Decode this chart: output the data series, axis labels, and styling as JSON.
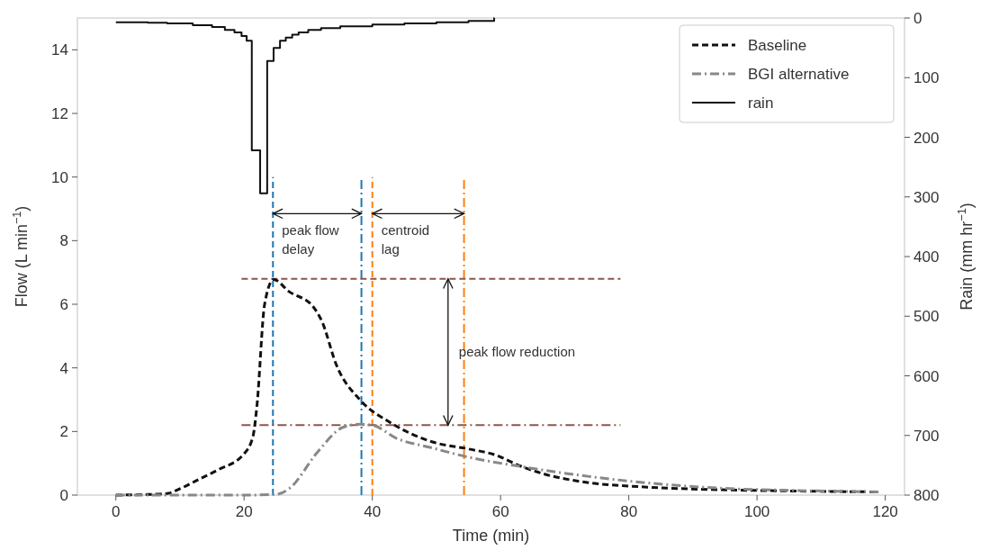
{
  "chart_data": {
    "type": "line",
    "xlabel": "Time (min)",
    "ylabel": "Flow (L min$^{−1}$)",
    "y2label": "Rain (mm hr$^{−1}$)",
    "xlim": [
      -6,
      123
    ],
    "xticks": [
      0,
      20,
      40,
      60,
      80,
      100,
      120
    ],
    "ylim": [
      0,
      15
    ],
    "yticks": [
      0,
      2,
      4,
      6,
      8,
      10,
      12,
      14
    ],
    "y2lim": [
      800,
      0
    ],
    "y2ticks": [
      0,
      100,
      200,
      300,
      400,
      500,
      600,
      700,
      800
    ],
    "legend": "top right",
    "grid": false,
    "series": [
      {
        "name": "Baseline",
        "color": "#111111",
        "line_style": "dashed",
        "x": [
          0,
          5,
          8,
          10,
          13,
          16,
          20,
          21.4,
          22,
          23.2,
          24.6,
          27,
          30.7,
          32.1,
          34.4,
          38.2,
          42.8,
          49.4,
          55,
          58.9,
          63.4,
          67,
          71.7,
          82.9,
          94.1,
          105,
          119
        ],
        "values": [
          0,
          0.02,
          0.05,
          0.2,
          0.5,
          0.8,
          1.3,
          1.86,
          2.8,
          6.0,
          6.78,
          6.4,
          5.94,
          5.48,
          4.09,
          2.97,
          2.28,
          1.67,
          1.45,
          1.28,
          0.89,
          0.65,
          0.45,
          0.25,
          0.17,
          0.13,
          0.1
        ]
      },
      {
        "name": "BGI alternative",
        "color": "#888888",
        "line_style": "dashdot",
        "x": [
          0,
          10,
          20,
          25,
          27,
          31.6,
          35.4,
          38,
          40,
          43.8,
          49,
          54.4,
          63.4,
          77.3,
          94,
          105,
          119
        ],
        "values": [
          0,
          0,
          0,
          0.02,
          0.2,
          1.39,
          2.13,
          2.23,
          2.2,
          1.78,
          1.5,
          1.22,
          0.89,
          0.5,
          0.22,
          0.15,
          0.1
        ]
      },
      {
        "name": "rain",
        "color": "#111111",
        "line_style": "solid",
        "type": "step",
        "axis": "y2",
        "x": [
          0,
          5,
          8,
          12,
          15,
          17,
          18.5,
          19.6,
          20.4,
          21.2,
          22.5,
          23.6,
          24.6,
          25.6,
          26.5,
          27.5,
          28.5,
          30,
          32,
          35,
          40,
          45,
          50,
          55,
          59,
          59.01
        ],
        "values": [
          7,
          8,
          9,
          12,
          15,
          20,
          24,
          30,
          38,
          222,
          294,
          72,
          50,
          38,
          33,
          28,
          24,
          20,
          17,
          14,
          11,
          9,
          7,
          5,
          0,
          0
        ]
      }
    ],
    "ref_lines": [
      {
        "axis": "x",
        "value": 24.5,
        "color": "#1f77b4",
        "line_style": "dashed"
      },
      {
        "axis": "x",
        "value": 38.3,
        "color": "#1f77b4",
        "line_style": "dashdot"
      },
      {
        "axis": "x",
        "value": 40,
        "color": "#ff7f0e",
        "line_style": "dashed"
      },
      {
        "axis": "x",
        "value": 54.3,
        "color": "#ff7f0e",
        "line_style": "dashdot"
      },
      {
        "axis": "y",
        "value": 6.8,
        "color": "#8c564b",
        "line_style": "dashed"
      },
      {
        "axis": "y",
        "value": 2.2,
        "color": "#8c564b",
        "line_style": "dashdot"
      }
    ],
    "annotations": [
      {
        "text": "peak flow\ndelay",
        "x": 24.5,
        "y": 8.85
      },
      {
        "text": "centroid\nlag",
        "x": 40,
        "y": 8.85
      },
      "peak flow reduction"
    ]
  }
}
